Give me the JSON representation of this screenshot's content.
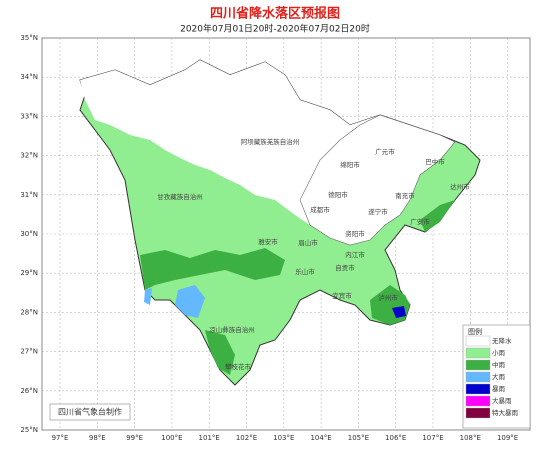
{
  "title": "四川省降水落区预报图",
  "subtitle": "2020年07月01日20时-2020年07月02日20时",
  "lat_labels": [
    "35°N",
    "34°N",
    "33°N",
    "32°N",
    "31°N",
    "30°N",
    "29°N",
    "28°N",
    "27°N",
    "26°N",
    "25°N"
  ],
  "lon_labels": [
    "97°E",
    "98°E",
    "99°E",
    "100°E",
    "101°E",
    "102°E",
    "103°E",
    "104°E",
    "105°E",
    "106°E",
    "107°E",
    "108°E",
    "109°E"
  ],
  "regions": [
    "阿坝藏族羌族自治州",
    "甘孜藏族自治州",
    "绵阳市",
    "广元市",
    "巴中市",
    "达州市",
    "南充市",
    "德阳市",
    "成都市",
    "遂宁市",
    "广安市",
    "雅安市",
    "眉山市",
    "资阳市",
    "内江市",
    "乐山市",
    "自贡市",
    "宜宾市",
    "泸州市",
    "凉山彝族自治州",
    "攀枝花市"
  ],
  "legend": {
    "title": "图例",
    "items": [
      {
        "label": "无降水",
        "color": "#ffffff"
      },
      {
        "label": "小雨",
        "color": "#90ee90"
      },
      {
        "label": "中雨",
        "color": "#3cb043"
      },
      {
        "label": "大雨",
        "color": "#63b8ff"
      },
      {
        "label": "暴雨",
        "color": "#0000cd"
      },
      {
        "label": "大暴雨",
        "color": "#ff00ff"
      },
      {
        "label": "特大暴雨",
        "color": "#800040"
      }
    ]
  },
  "credit": "四川省气象台制作"
}
